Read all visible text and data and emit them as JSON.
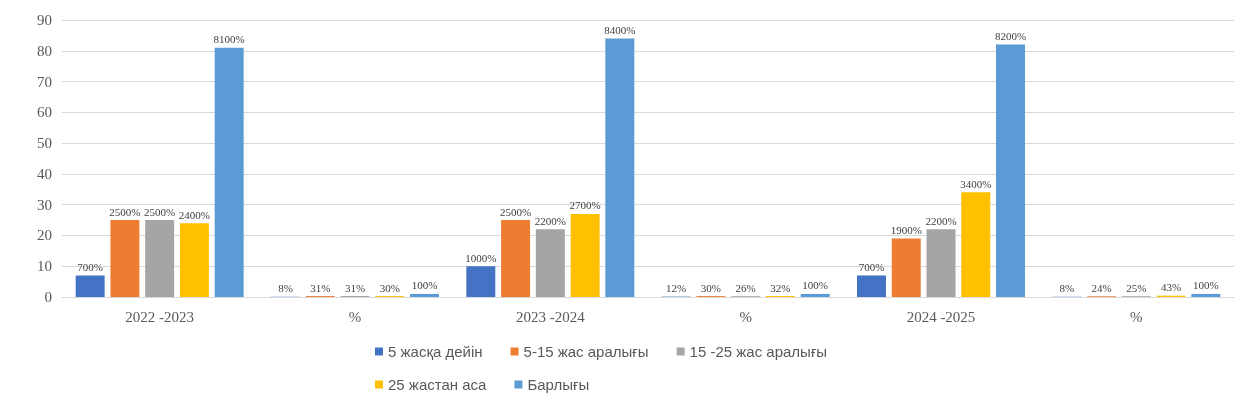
{
  "chart_data": {
    "type": "bar",
    "categories": [
      "2022 -2023",
      "%",
      "2023 -2024",
      "%",
      "2024 -2025",
      "%"
    ],
    "series": [
      {
        "name": "5 жасқа дейін",
        "color": "#4472c4",
        "values": [
          7,
          0.08,
          10,
          0.12,
          7,
          0.08
        ],
        "value_labels": [
          "700%",
          "8%",
          "1000%",
          "12%",
          "700%",
          "8%"
        ]
      },
      {
        "name": "5-15 жас аралығы",
        "color": "#ed7d31",
        "values": [
          25,
          0.31,
          25,
          0.3,
          19,
          0.24
        ],
        "value_labels": [
          "2500%",
          "31%",
          "2500%",
          "30%",
          "1900%",
          "24%"
        ]
      },
      {
        "name": "15 -25 жас аралығы",
        "color": "#a5a5a5",
        "values": [
          25,
          0.31,
          22,
          0.26,
          22,
          0.25
        ],
        "value_labels": [
          "2500%",
          "31%",
          "2200%",
          "26%",
          "2200%",
          "25%"
        ]
      },
      {
        "name": "25 жастан аса",
        "color": "#ffc000",
        "values": [
          24,
          0.3,
          27,
          0.32,
          34,
          0.43
        ],
        "value_labels": [
          "2400%",
          "30%",
          "2700%",
          "32%",
          "3400%",
          "43%"
        ]
      },
      {
        "name": "Барлығы",
        "color": "#5b9bd5",
        "values": [
          81,
          1,
          84,
          1,
          82,
          1
        ],
        "value_labels": [
          "8100%",
          "100%",
          "8400%",
          "100%",
          "8200%",
          "100%"
        ]
      }
    ],
    "ylim": [
      0,
      90
    ],
    "yticks": [
      0,
      10,
      20,
      30,
      40,
      50,
      60,
      70,
      80,
      90
    ],
    "grid": "y",
    "legend": "bottom"
  }
}
